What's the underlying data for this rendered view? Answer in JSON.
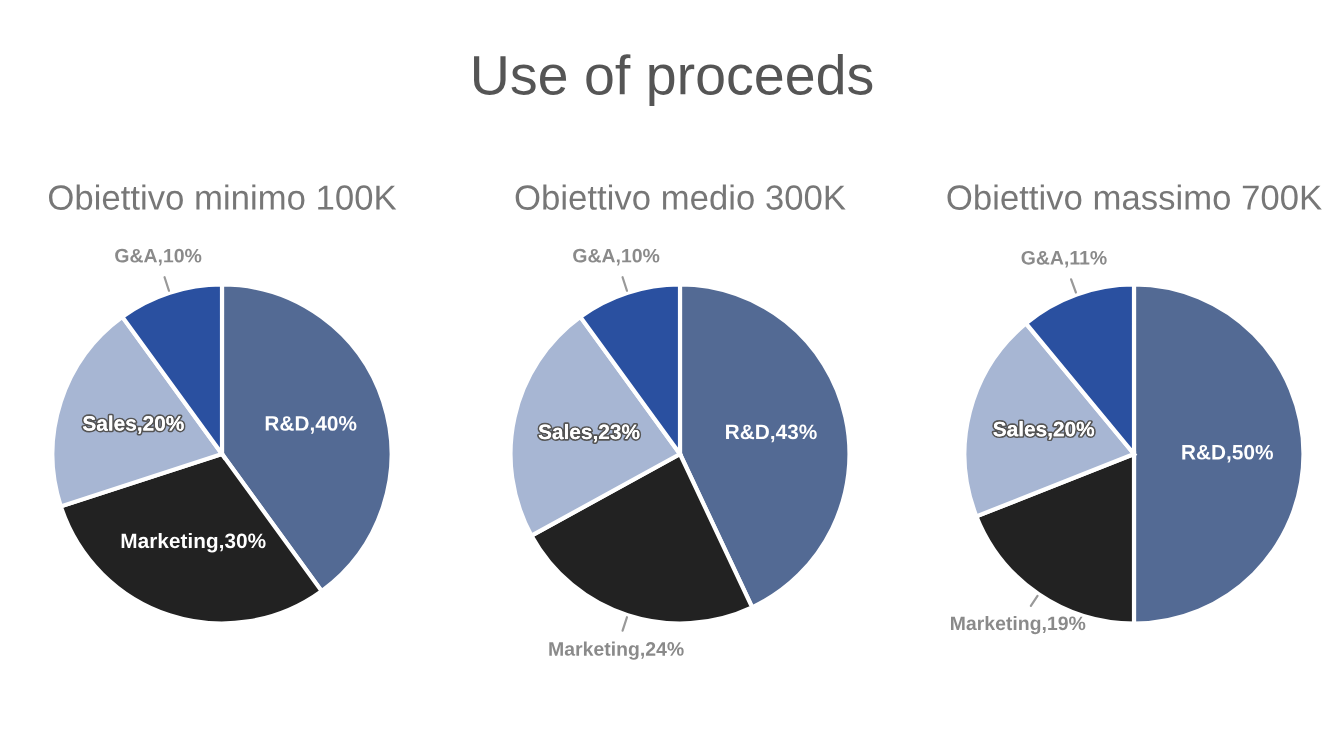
{
  "chart_data": [
    {
      "type": "pie",
      "title": "Obiettivo minimo 100K",
      "annotations": [
        "Use of proceeds"
      ],
      "categories": [
        "R&D",
        "Marketing",
        "Sales",
        "G&A"
      ],
      "values": [
        40,
        30,
        20,
        10
      ],
      "value_labels": [
        "40%",
        "30%",
        "20%",
        "10%"
      ],
      "colors": [
        "#536a94",
        "#222222",
        "#a7b6d3",
        "#2a50a0"
      ]
    },
    {
      "type": "pie",
      "title": "Obiettivo medio 300K",
      "categories": [
        "R&D",
        "Marketing",
        "Sales",
        "G&A"
      ],
      "values": [
        43,
        24,
        23,
        10
      ],
      "value_labels": [
        "43%",
        "24%",
        "23%",
        "10%"
      ],
      "colors": [
        "#536a94",
        "#222222",
        "#a7b6d3",
        "#2a50a0"
      ]
    },
    {
      "type": "pie",
      "title": "Obiettivo massimo 700K",
      "categories": [
        "R&D",
        "Marketing",
        "Sales",
        "G&A"
      ],
      "values": [
        50,
        19,
        20,
        11
      ],
      "value_labels": [
        "50%",
        "19%",
        "20%",
        "11%"
      ],
      "colors": [
        "#536a94",
        "#222222",
        "#a7b6d3",
        "#2a50a0"
      ]
    }
  ]
}
